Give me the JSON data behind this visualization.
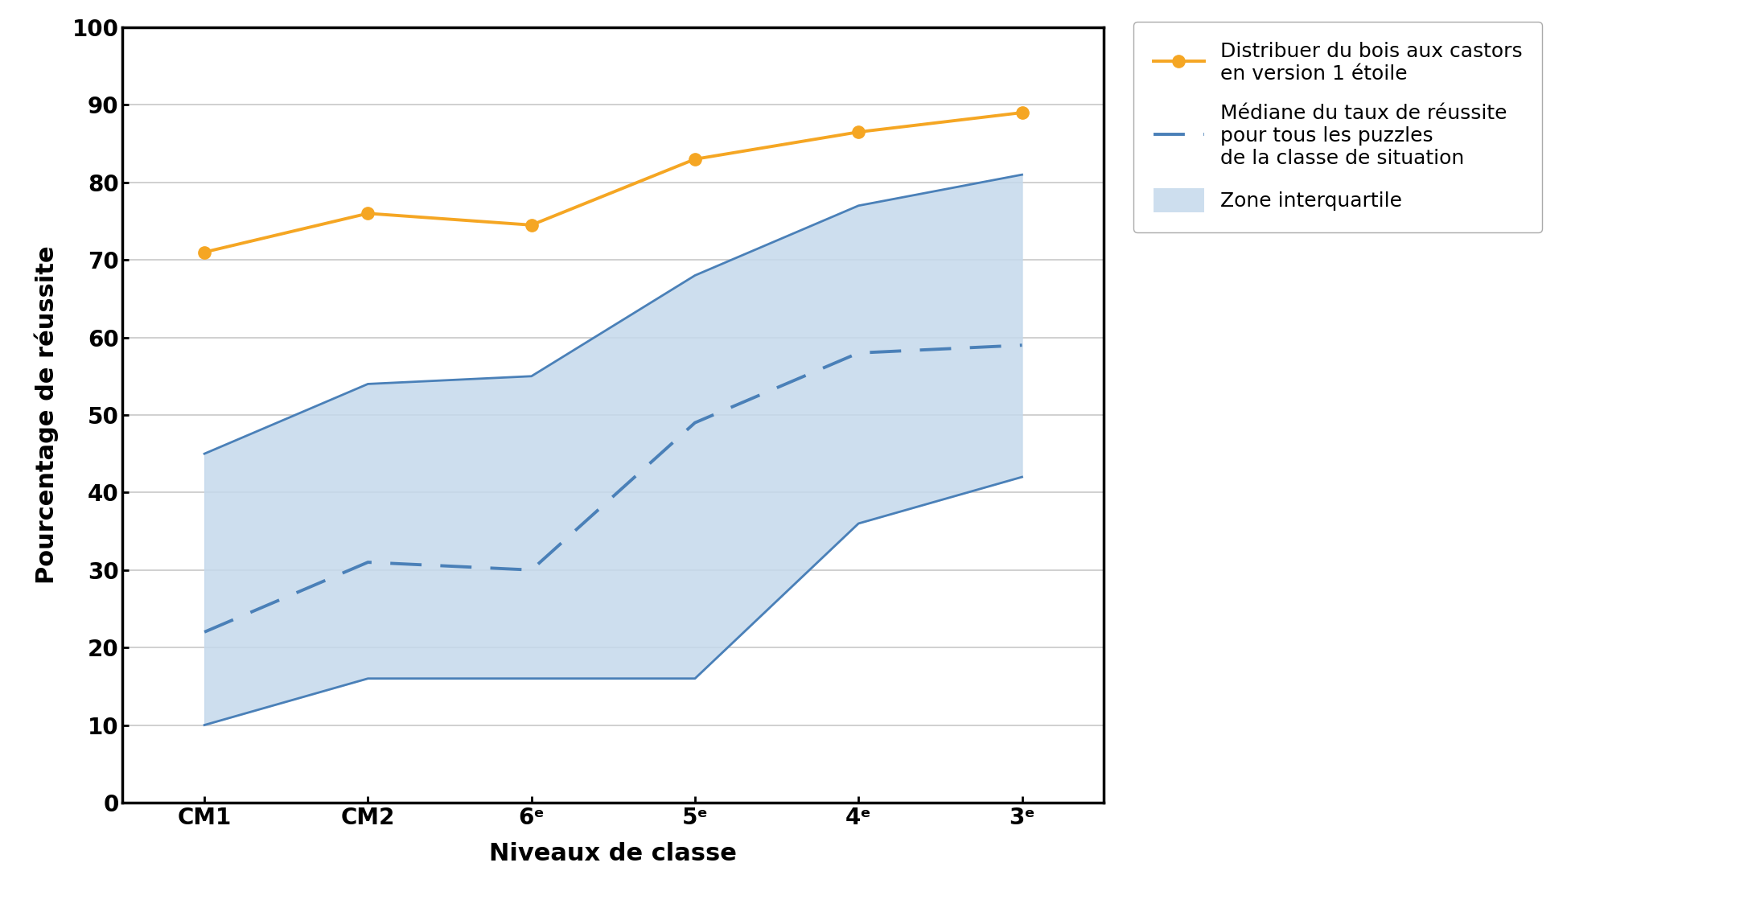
{
  "x_labels": [
    "CM1",
    "CM2",
    "6ᵉ",
    "5ᵉ",
    "4ᵉ",
    "3ᵉ"
  ],
  "orange_line": [
    71,
    76,
    74.5,
    83,
    86.5,
    89
  ],
  "median_line": [
    22,
    31,
    30,
    49,
    58,
    59
  ],
  "q1_line": [
    10,
    16,
    16,
    16,
    36,
    42
  ],
  "q3_line": [
    45,
    54,
    55,
    68,
    77,
    81
  ],
  "orange_color": "#F5A623",
  "median_color": "#4A80B8",
  "fill_color": "#C5D9EC",
  "fill_alpha": 0.85,
  "ylabel": "Pourcentage de réussite",
  "xlabel": "Niveaux de classe",
  "ylim": [
    0,
    100
  ],
  "yticks": [
    0,
    10,
    20,
    30,
    40,
    50,
    60,
    70,
    80,
    90,
    100
  ],
  "legend_orange": "Distribuer du bois aux castors\nen version 1 étoile",
  "legend_median": "Médiane du taux de réussite\npour tous les puzzles\nde la classe de situation",
  "legend_fill": "Zone interquartile",
  "grid_color": "#C8C8C8",
  "spine_color": "#000000",
  "background_color": "#FFFFFF"
}
